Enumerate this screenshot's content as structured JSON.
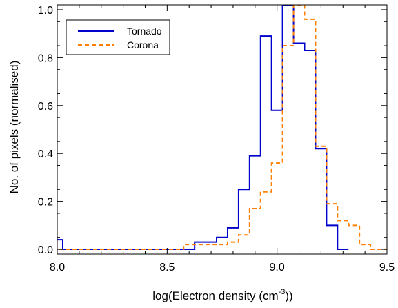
{
  "chart_data": {
    "type": "line",
    "subtype": "step-histogram",
    "xlabel_main": "log(Electron density (cm",
    "xlabel_sup": "-3",
    "xlabel_end": "))",
    "ylabel": "No. of pixels (normalised)",
    "xlim": [
      8.0,
      9.5
    ],
    "ylim": [
      -0.02,
      1.02
    ],
    "xticks": [
      "8.0",
      "8.5",
      "9.0",
      "9.5"
    ],
    "xtick_values": [
      8.0,
      8.5,
      9.0,
      9.5
    ],
    "yticks": [
      "0.0",
      "0.2",
      "0.4",
      "0.6",
      "0.8",
      "1.0"
    ],
    "ytick_values": [
      0.0,
      0.2,
      0.4,
      0.6,
      0.8,
      1.0
    ],
    "bin_width": 0.05,
    "grid": false,
    "legend_position": "top-left",
    "series": [
      {
        "name": "Tornado",
        "color": "#0000cc",
        "dash": "solid",
        "bin_start": [
          7.975,
          8.025,
          8.075,
          8.125,
          8.175,
          8.225,
          8.275,
          8.325,
          8.375,
          8.425,
          8.475,
          8.525,
          8.575,
          8.625,
          8.675,
          8.725,
          8.775,
          8.825,
          8.875,
          8.925,
          8.975,
          9.025,
          9.075,
          9.125,
          9.175,
          9.225,
          9.275
        ],
        "values": [
          0.04,
          0.0,
          0.0,
          0.0,
          0.0,
          0.0,
          0.0,
          0.0,
          0.0,
          0.0,
          0.0,
          0.0,
          0.0,
          0.03,
          0.03,
          0.05,
          0.09,
          0.25,
          0.39,
          0.89,
          0.58,
          1.02,
          0.86,
          0.83,
          0.42,
          0.1,
          0.0
        ]
      },
      {
        "name": "Corona",
        "color": "#ff8000",
        "dash": "dashed",
        "bin_start": [
          7.975,
          8.025,
          8.075,
          8.125,
          8.175,
          8.225,
          8.275,
          8.325,
          8.375,
          8.425,
          8.475,
          8.525,
          8.575,
          8.625,
          8.675,
          8.725,
          8.775,
          8.825,
          8.875,
          8.925,
          8.975,
          9.025,
          9.075,
          9.125,
          9.175,
          9.225,
          9.275,
          9.325,
          9.375,
          9.425,
          9.475
        ],
        "values": [
          0.0,
          0.0,
          0.0,
          0.0,
          0.0,
          0.0,
          0.0,
          0.0,
          0.0,
          0.0,
          0.0,
          0.0,
          0.02,
          0.02,
          0.02,
          0.02,
          0.03,
          0.06,
          0.17,
          0.24,
          0.36,
          0.85,
          1.02,
          0.96,
          0.43,
          0.19,
          0.12,
          0.1,
          0.02,
          0.0,
          0.0
        ]
      }
    ]
  }
}
